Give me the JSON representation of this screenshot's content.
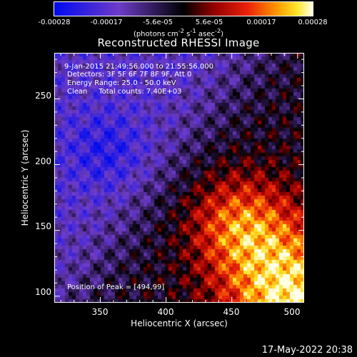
{
  "colorbar": {
    "ticks": [
      "-0.00028",
      "-0.00017",
      "-5.6e-05",
      "5.6e-05",
      "0.00017",
      "0.00028"
    ],
    "units_html": "(photons cm<sup>-2</sup> s<sup>-1</sup> asec<sup>-2</sup>)"
  },
  "chart_data": {
    "type": "heatmap",
    "title": "Reconstructed RHESSI Image",
    "xlabel": "Heliocentric X (arcsec)",
    "ylabel": "Heliocentric Y (arcsec)",
    "xlim": [
      315,
      505
    ],
    "ylim": [
      95,
      285
    ],
    "xticks": [
      "350",
      "400",
      "450",
      "500"
    ],
    "yticks": [
      "100",
      "150",
      "200",
      "250"
    ],
    "colormap": "hot-blue diverging (blue negative, black mid, red/yellow/white positive)",
    "value_range": [
      -0.00028,
      0.00028
    ],
    "peak_position": [
      494,
      99
    ],
    "annotations": [
      "9-Jan-2015 21:49:56.000 to 21:55:56.000",
      "Detectors: 3F 5F 6F 7F 8F 9F, Att 0",
      "Energy Range: 25.0 - 50.0 keV",
      "Clean     Total counts: 7.40E+03"
    ],
    "peak_label": "Position of Peak = [494,99]"
  },
  "timestamp": "17-May-2022 20:38",
  "colors": {
    "background": "#000000",
    "foreground": "#ffffff",
    "neg_max": "#0a2ce8",
    "neg_mid": "#6a3cc8",
    "pos_mid": "#e02010",
    "pos_max": "#ffffc8"
  }
}
